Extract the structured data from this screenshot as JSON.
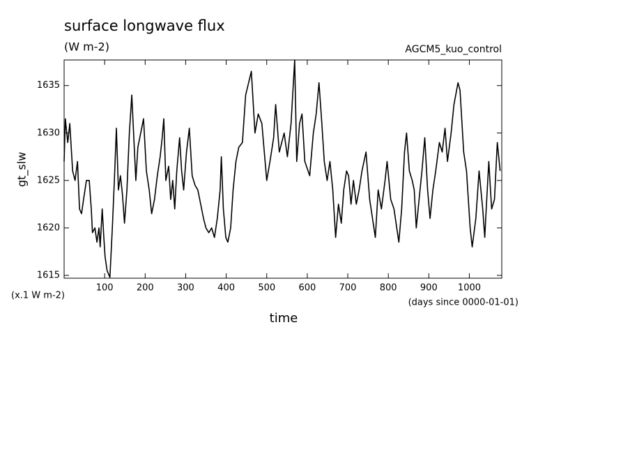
{
  "chart_data": {
    "type": "line",
    "title": "surface longwave flux",
    "subtitle": "(W m-2)",
    "run_label": "AGCM5_kuo_control",
    "ylabel": "gt_slw",
    "y_unit_label": "(x.1 W m-2)",
    "xlabel": "time",
    "x_unit_label": "(days since 0000-01-01)",
    "xlim": [
      0,
      1080
    ],
    "ylim": [
      1614.7,
      1637.7
    ],
    "xticks": [
      100,
      200,
      300,
      400,
      500,
      600,
      700,
      800,
      900,
      1000
    ],
    "yticks": [
      1615,
      1620,
      1625,
      1630,
      1635
    ],
    "x": [
      0,
      3,
      9,
      14,
      21,
      27,
      33,
      38,
      43,
      48,
      55,
      62,
      67,
      70,
      76,
      81,
      86,
      89,
      94,
      98,
      101,
      106,
      113,
      119,
      124,
      129,
      134,
      139,
      144,
      149,
      155,
      161,
      167,
      172,
      177,
      182,
      189,
      196,
      203,
      210,
      216,
      223,
      230,
      237,
      242,
      246,
      251,
      258,
      263,
      268,
      273,
      278,
      285,
      290,
      295,
      302,
      309,
      316,
      323,
      330,
      337,
      344,
      350,
      357,
      364,
      371,
      378,
      385,
      388,
      393,
      399,
      404,
      411,
      417,
      424,
      431,
      440,
      448,
      462,
      471,
      479,
      488,
      500,
      508,
      517,
      522,
      531,
      543,
      551,
      560,
      569,
      574,
      581,
      587,
      594,
      606,
      615,
      622,
      629,
      636,
      642,
      649,
      656,
      663,
      670,
      677,
      684,
      690,
      697,
      702,
      708,
      714,
      721,
      728,
      735,
      745,
      754,
      761,
      768,
      775,
      783,
      792,
      797,
      806,
      814,
      826,
      833,
      840,
      845,
      852,
      859,
      864,
      869,
      876,
      883,
      890,
      897,
      903,
      910,
      917,
      926,
      933,
      940,
      946,
      955,
      962,
      972,
      977,
      986,
      993,
      1002,
      1007,
      1016,
      1024,
      1033,
      1038,
      1041,
      1048,
      1055,
      1062,
      1069,
      1076
    ],
    "series": [
      {
        "name": "gt_slw",
        "color": "#000000",
        "values": [
          1627,
          1631.5,
          1629,
          1631,
          1626,
          1625,
          1627,
          1622,
          1621.5,
          1623,
          1625,
          1625,
          1622,
          1619.5,
          1620,
          1618.5,
          1620,
          1618,
          1622,
          1619,
          1617,
          1615.5,
          1614.8,
          1620,
          1625,
          1630.5,
          1624,
          1625.5,
          1623.5,
          1620.5,
          1624,
          1630,
          1634,
          1629.5,
          1625,
          1628.5,
          1630,
          1631.5,
          1626,
          1624,
          1621.5,
          1623,
          1625.5,
          1627.5,
          1629.5,
          1631.5,
          1625,
          1626.5,
          1623,
          1625,
          1622,
          1626,
          1629.5,
          1626,
          1624,
          1628,
          1630.5,
          1625.5,
          1624.5,
          1624,
          1622.5,
          1621,
          1620,
          1619.5,
          1620,
          1619,
          1621,
          1624,
          1627.5,
          1622,
          1619,
          1618.5,
          1620,
          1624,
          1627,
          1628.5,
          1629,
          1634,
          1636.5,
          1630,
          1632,
          1631,
          1625,
          1627,
          1629.5,
          1633,
          1628,
          1630,
          1627.5,
          1631,
          1637.7,
          1627,
          1631,
          1632,
          1627,
          1625.5,
          1630,
          1632,
          1635.3,
          1631,
          1627,
          1625,
          1627,
          1624,
          1619,
          1622.5,
          1620.5,
          1624,
          1626,
          1625.5,
          1622.5,
          1625,
          1622.5,
          1624,
          1626,
          1628,
          1623,
          1621,
          1619,
          1624,
          1622,
          1625,
          1627,
          1623,
          1622,
          1618.5,
          1622,
          1628,
          1630,
          1626,
          1625,
          1624,
          1620,
          1623,
          1626,
          1629.5,
          1624,
          1621,
          1624,
          1626,
          1629,
          1628,
          1630.5,
          1627,
          1630,
          1633,
          1635.3,
          1634.5,
          1628,
          1626,
          1620,
          1618,
          1621,
          1626,
          1622,
          1619,
          1621.5,
          1627,
          1622,
          1623,
          1629,
          1626
        ]
      }
    ]
  }
}
